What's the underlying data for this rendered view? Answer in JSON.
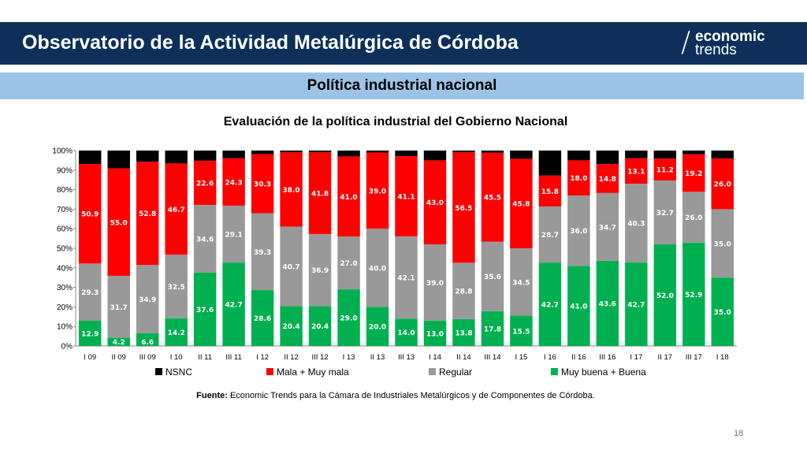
{
  "header": {
    "title": "Observatorio de la Actividad Metalúrgica de Córdoba",
    "logo_line1": "economic",
    "logo_line2": "trends"
  },
  "section_title": "Política industrial nacional",
  "colors": {
    "header_bg": "#0d2f5a",
    "section_bg": "#9cc3e6",
    "nsnc": "#000000",
    "mala": "#ff0000",
    "regular": "#999999",
    "buena": "#00b050"
  },
  "chart_data": {
    "type": "bar",
    "stacked": true,
    "title": "Evaluación de la política industrial del Gobierno Nacional",
    "categories": [
      "I 09",
      "II 09",
      "III 09",
      "I 10",
      "II 11",
      "III 11",
      "I 12",
      "II 12",
      "III 12",
      "I 13",
      "II 13",
      "III 13",
      "I 14",
      "II 14",
      "III 14",
      "I 15",
      "I 16",
      "II 16",
      "III 16",
      "I 17",
      "II 17",
      "III 17",
      "I 18"
    ],
    "ylim": [
      0,
      100
    ],
    "yticks": [
      "0%",
      "10%",
      "20%",
      "30%",
      "40%",
      "50%",
      "60%",
      "70%",
      "80%",
      "90%",
      "100%"
    ],
    "legend_position": "bottom",
    "series": [
      {
        "name": "Muy buena + Buena",
        "color": "#00b050",
        "values": [
          12.9,
          4.2,
          6.6,
          14.2,
          37.6,
          42.7,
          28.6,
          20.4,
          20.4,
          29.0,
          20.0,
          14.0,
          13.0,
          13.8,
          17.8,
          15.5,
          42.7,
          41.0,
          43.6,
          42.7,
          52.0,
          52.9,
          35.0
        ]
      },
      {
        "name": "Regular",
        "color": "#999999",
        "values": [
          29.3,
          31.7,
          34.9,
          32.5,
          34.6,
          29.1,
          39.3,
          40.7,
          36.9,
          27.0,
          40.0,
          42.1,
          39.0,
          28.8,
          35.6,
          34.5,
          28.7,
          36.0,
          34.7,
          40.3,
          32.7,
          26.0,
          35.0
        ]
      },
      {
        "name": "Mala + Muy mala",
        "color": "#ff0000",
        "values": [
          50.9,
          55.0,
          52.8,
          46.7,
          22.6,
          24.3,
          30.3,
          38.0,
          41.8,
          41.0,
          39.0,
          41.1,
          43.0,
          56.5,
          45.5,
          45.8,
          15.8,
          18.0,
          14.8,
          13.1,
          11.2,
          19.2,
          26.0
        ]
      },
      {
        "name": "NSNC",
        "color": "#000000",
        "values": [
          6.9,
          9.1,
          5.7,
          6.6,
          5.2,
          3.9,
          1.8,
          0.9,
          0.9,
          3.0,
          1.0,
          2.8,
          5.0,
          0.9,
          1.1,
          4.2,
          12.8,
          5.0,
          6.9,
          3.9,
          4.1,
          1.9,
          4.0
        ]
      }
    ],
    "legend_order": [
      "NSNC",
      "Mala + Muy mala",
      "Regular",
      "Muy buena + Buena"
    ]
  },
  "source": {
    "label": "Fuente:",
    "text": "Economic Trends para la Cámara de Industriales Metalúrgicos y de Componentes de Córdoba."
  },
  "page_number": "18"
}
